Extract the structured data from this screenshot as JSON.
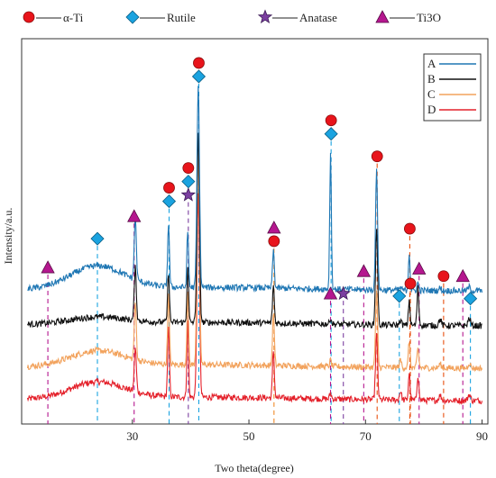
{
  "chart_data": {
    "type": "line",
    "xlabel": "Two theta(degree)",
    "ylabel": "Intensity/a.u.",
    "xlim": [
      11,
      91
    ],
    "xticks": [
      30,
      50,
      70,
      90
    ],
    "phase_legend": [
      {
        "label": "α-Ti",
        "marker": "circle",
        "color": "#e8141b"
      },
      {
        "label": "Rutile",
        "marker": "diamond",
        "color": "#1aa3e0"
      },
      {
        "label": "Anatase",
        "marker": "star",
        "color": "#7b3fa0"
      },
      {
        "label": "Ti3O",
        "marker": "triangle",
        "color": "#b5178f"
      }
    ],
    "series": [
      {
        "name": "A",
        "color": "#1f77b4",
        "baseline": 0.0,
        "amp": 1.0,
        "hump_amp": 0.18
      },
      {
        "name": "B",
        "color": "#111111",
        "baseline": -0.28,
        "amp": 1.0,
        "hump_amp": 0.05
      },
      {
        "name": "C",
        "color": "#f2a25c",
        "baseline": -0.62,
        "amp": 1.0,
        "hump_amp": 0.12
      },
      {
        "name": "D",
        "color": "#e4202a",
        "baseline": -0.88,
        "amp": 1.0,
        "hump_amp": 0.13
      }
    ],
    "peaks": [
      {
        "x": 30.5,
        "h": [
          0.5,
          0.42,
          0.45,
          0.35
        ],
        "w": 0.25
      },
      {
        "x": 36.2,
        "h": [
          0.5,
          0.4,
          0.55,
          0.55
        ],
        "w": 0.22
      },
      {
        "x": 39.5,
        "h": [
          0.45,
          0.45,
          0.58,
          0.6
        ],
        "w": 0.2
      },
      {
        "x": 41.3,
        "h": [
          1.6,
          1.5,
          1.68,
          1.62
        ],
        "w": 0.3
      },
      {
        "x": 54.2,
        "h": [
          0.3,
          0.3,
          0.42,
          0.38
        ],
        "w": 0.22
      },
      {
        "x": 64.0,
        "h": [
          1.08,
          0.05,
          0.05,
          0.05
        ],
        "w": 0.2
      },
      {
        "x": 71.9,
        "h": [
          0.95,
          0.78,
          0.6,
          0.52
        ],
        "w": 0.25
      },
      {
        "x": 77.5,
        "h": [
          0.3,
          0.2,
          0.22,
          0.22
        ],
        "w": 0.2
      },
      {
        "x": 79.0,
        "h": [
          0.06,
          0.3,
          0.15,
          0.2
        ],
        "w": 0.22
      },
      {
        "x": 76.0,
        "h": [
          0.02,
          0.04,
          0.06,
          0.07
        ],
        "w": 0.25
      },
      {
        "x": 87.8,
        "h": [
          0.03,
          0.06,
          0.04,
          0.05
        ],
        "w": 0.3
      },
      {
        "x": 82.8,
        "h": [
          0.02,
          0.05,
          0.03,
          0.04
        ],
        "w": 0.3
      }
    ],
    "ylim": [
      -1.0,
      1.9
    ],
    "reference_lines": [
      {
        "x": 15.5,
        "marker": "triangle",
        "y_top": 0.19
      },
      {
        "x": 24.0,
        "marker": "diamond",
        "y_top": 0.42
      },
      {
        "x": 30.3,
        "marker": "triangle",
        "y_top": 0.6
      },
      {
        "x": 36.3,
        "marker": "circle-diamond",
        "y_top": 0.72
      },
      {
        "x": 39.6,
        "marker": "circle-diamond-star",
        "y_top": 0.77
      },
      {
        "x": 41.4,
        "marker": "circle-diamond",
        "y_top": 1.72
      },
      {
        "x": 54.3,
        "marker": "triangle-circle",
        "y_top": 0.4
      },
      {
        "x": 64.1,
        "marker": "circle-diamond",
        "y_top": 1.26
      },
      {
        "x": 64.0,
        "marker": "triangle",
        "y_top": -0.02
      },
      {
        "x": 66.2,
        "marker": "star",
        "y_top": -0.02
      },
      {
        "x": 69.7,
        "marker": "triangle",
        "y_top": 0.16
      },
      {
        "x": 72.0,
        "marker": "circle",
        "y_top": 1.08
      },
      {
        "x": 75.8,
        "marker": "diamond",
        "y_top": -0.04
      },
      {
        "x": 77.6,
        "marker": "circle",
        "y_top": 0.5
      },
      {
        "x": 77.7,
        "marker": "circle",
        "y_top": 0.06
      },
      {
        "x": 79.2,
        "marker": "triangle",
        "y_top": 0.18
      },
      {
        "x": 83.4,
        "marker": "circle",
        "y_top": 0.12
      },
      {
        "x": 86.7,
        "marker": "triangle",
        "y_top": 0.12
      },
      {
        "x": 88.0,
        "marker": "diamond",
        "y_top": -0.06
      }
    ]
  }
}
